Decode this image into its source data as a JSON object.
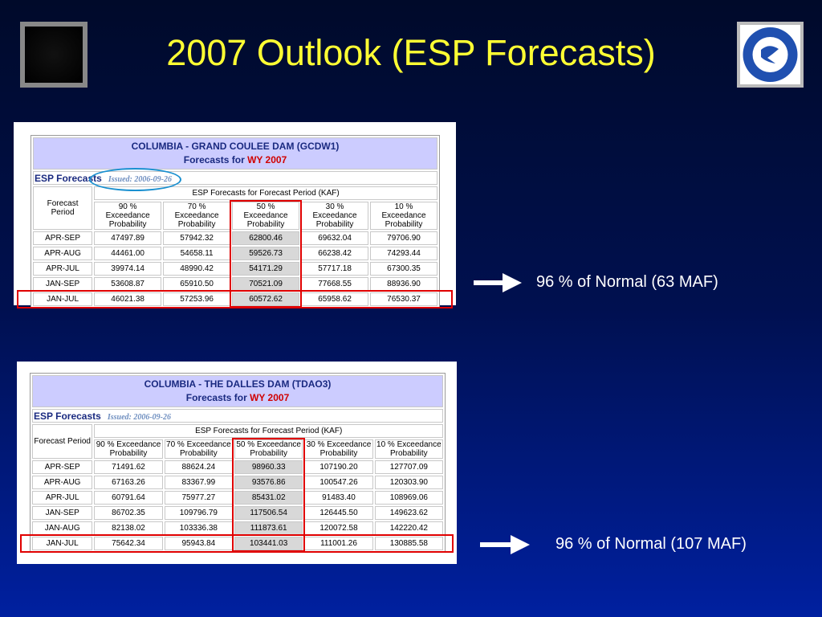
{
  "title": "2007 Outlook (ESP Forecasts)",
  "panels": [
    {
      "table_title": "COLUMBIA - GRAND COULEE DAM (GCDW1)",
      "forecasts_for": "Forecasts for",
      "water_year": "WY 2007",
      "esp_label": "ESP Forecasts",
      "issued": "Issued: 2006-09-26",
      "period_header": "Forecast Period",
      "group_header": "ESP Forecasts for Forecast Period (KAF)",
      "columns": [
        "90 % Exceedance Probability",
        "70 % Exceedance Probability",
        "50 % Exceedance Probability",
        "30 % Exceedance Probability",
        "10 % Exceedance Probability"
      ],
      "rows": [
        [
          "APR-SEP",
          "47497.89",
          "57942.32",
          "62800.46",
          "69632.04",
          "79706.90"
        ],
        [
          "APR-AUG",
          "44461.00",
          "54658.11",
          "59526.73",
          "66238.42",
          "74293.44"
        ],
        [
          "APR-JUL",
          "39974.14",
          "48990.42",
          "54171.29",
          "57717.18",
          "67300.35"
        ],
        [
          "JAN-SEP",
          "53608.87",
          "65910.50",
          "70521.09",
          "77668.55",
          "88936.90"
        ],
        [
          "JAN-JUL",
          "46021.38",
          "57253.96",
          "60572.62",
          "65958.62",
          "76530.37"
        ]
      ],
      "note": "96 % of Normal (63 MAF)"
    },
    {
      "table_title": "COLUMBIA - THE DALLES DAM (TDAO3)",
      "forecasts_for": "Forecasts for",
      "water_year": "WY 2007",
      "esp_label": "ESP Forecasts",
      "issued": "Issued: 2006-09-26",
      "period_header": "Forecast Period",
      "group_header": "ESP Forecasts for Forecast Period (KAF)",
      "columns": [
        "90 % Exceedance Probability",
        "70 % Exceedance Probability",
        "50 % Exceedance Probability",
        "30 % Exceedance Probability",
        "10 % Exceedance Probability"
      ],
      "rows": [
        [
          "APR-SEP",
          "71491.62",
          "88624.24",
          "98960.33",
          "107190.20",
          "127707.09"
        ],
        [
          "APR-AUG",
          "67163.26",
          "83367.99",
          "93576.86",
          "100547.26",
          "120303.90"
        ],
        [
          "APR-JUL",
          "60791.64",
          "75977.27",
          "85431.02",
          "91483.40",
          "108969.06"
        ],
        [
          "JAN-SEP",
          "86702.35",
          "109796.79",
          "117506.54",
          "126445.50",
          "149623.62"
        ],
        [
          "JAN-AUG",
          "82138.02",
          "103336.38",
          "111873.61",
          "120072.58",
          "142220.42"
        ],
        [
          "JAN-JUL",
          "75642.34",
          "95943.84",
          "103441.03",
          "111001.26",
          "130885.58"
        ]
      ],
      "note": "96 % of Normal (107 MAF)"
    }
  ]
}
